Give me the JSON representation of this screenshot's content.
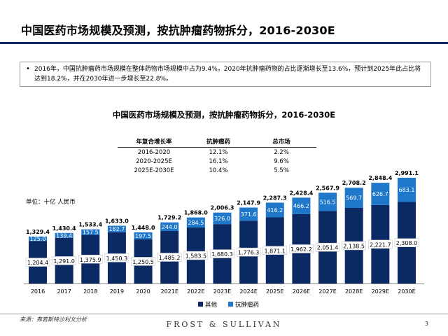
{
  "page": {
    "title": "中国医药市场规模及预测，按抗肿瘤药物拆分，2016-2030E",
    "summary_bullet": "•",
    "summary": "2016年，中国抗肿瘤药市场规模在整体药物市场规模中占为9.4%，2020年抗肿瘤药物的占比逐渐增长至13.6%，预计到2025年此占比将达到18.2%，并在2030年进一步增长至22.8%。",
    "source": "来源：弗若斯特沙利文分析",
    "brand": "FROST & SULLIVAN",
    "page_number": "3"
  },
  "cagr_table": {
    "headers": [
      "年复合增长率",
      "抗肿瘤药",
      "总市场"
    ],
    "rows": [
      [
        "2016-2020",
        "12.1%",
        "2.2%"
      ],
      [
        "2020-2025E",
        "16.1%",
        "9.6%"
      ],
      [
        "2025E-2030E",
        "10.4%",
        "5.5%"
      ]
    ]
  },
  "chart_data": {
    "type": "bar",
    "stacked": true,
    "title": "中国医药市场规模及预测，按抗肿瘤药物拆分，2016-2030E",
    "unit_label": "单位：十亿 人民币",
    "categories": [
      "2016",
      "2017",
      "2018",
      "2019",
      "2020",
      "2021E",
      "2022E",
      "2023E",
      "2024E",
      "2025E",
      "2026E",
      "2027E",
      "2028E",
      "2029E",
      "2030E"
    ],
    "series": [
      {
        "name": "其他",
        "color": "#0b2a63",
        "values": [
          1204.4,
          1291.0,
          1375.9,
          1450.3,
          1250.5,
          1485.2,
          1583.5,
          1680.3,
          1776.3,
          1871.1,
          1962.2,
          2051.4,
          2138.5,
          2221.7,
          2308.0
        ]
      },
      {
        "name": "抗肿瘤药",
        "color": "#1f77c9",
        "values": [
          125.0,
          139.4,
          157.5,
          182.7,
          197.5,
          244.0,
          284.5,
          326.0,
          371.6,
          416.2,
          466.2,
          516.5,
          569.7,
          626.7,
          683.1
        ]
      }
    ],
    "totals": [
      "1,329.4",
      "1,430.4",
      "1,533.4",
      "1,633.0",
      "1,448.0",
      "1,729.2",
      "1,868.0",
      "2,006.3",
      "2,147.9",
      "2,287.3",
      "2,428.4",
      "2,567.9",
      "2,708.2",
      "2,848.4",
      "2,991.1"
    ],
    "other_labels": [
      "1,204.4",
      "1,291.0",
      "1,375.9",
      "1,450.3",
      "1,250.5",
      "1,485.2",
      "1,583.5",
      "1,680.3",
      "1,776.3",
      "1,871.1",
      "1,962.2",
      "2,051.4",
      "2,138.5",
      "2,221.7",
      "2,308.0"
    ],
    "onco_labels": [
      "125.0",
      "139.4",
      "157.5",
      "182.7",
      "197.5",
      "244.0",
      "284.5",
      "326.0",
      "371.6",
      "416.2",
      "466.2",
      "516.5",
      "569.7",
      "626.7",
      "683.1"
    ],
    "legend_placement": "bottom",
    "grid": false
  }
}
